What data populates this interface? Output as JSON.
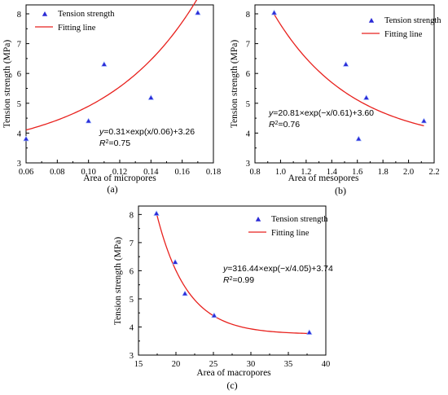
{
  "colors": {
    "marker": "#2b2bd6",
    "fit": "#e8211d",
    "axis": "#000000"
  },
  "chart_data": [
    {
      "id": "a",
      "type": "scatter",
      "panel_label": "(a)",
      "xlabel": "Area of micropores",
      "ylabel": "Tension strength (MPa)",
      "xlim": [
        0.06,
        0.18
      ],
      "ylim": [
        3,
        8.3
      ],
      "xticks": [
        0.06,
        0.08,
        0.1,
        0.12,
        0.14,
        0.16,
        0.18
      ],
      "xtick_labels": [
        "0.06",
        "0.08",
        "0.10",
        "0.12",
        "0.14",
        "0.16",
        "0.18"
      ],
      "yticks": [
        3,
        4,
        5,
        6,
        7,
        8
      ],
      "ytick_labels": [
        "3",
        "4",
        "5",
        "6",
        "7",
        "8"
      ],
      "legend": {
        "position": "top-left",
        "scatter_label": "Tension strength",
        "line_label": "Fitting line"
      },
      "points": {
        "x": [
          0.06,
          0.1,
          0.11,
          0.14,
          0.17
        ],
        "y": [
          3.8,
          4.4,
          6.3,
          5.18,
          8.03
        ]
      },
      "fit": {
        "model": "exp_pos",
        "A": 0.31,
        "t": 0.06,
        "C": 3.26,
        "x_range": [
          0.06,
          0.17
        ]
      },
      "equation": {
        "pre": "y",
        "body": "=0.31×exp(x/0.06)+3.26"
      },
      "r2": {
        "sup": "2",
        "value": "=0.75"
      }
    },
    {
      "id": "b",
      "type": "scatter",
      "panel_label": "(b)",
      "xlabel": "Area of mesopores",
      "ylabel": "Tension strength (MPa)",
      "xlim": [
        0.8,
        2.2
      ],
      "ylim": [
        3,
        8.3
      ],
      "xticks": [
        0.8,
        1.0,
        1.2,
        1.4,
        1.6,
        1.8,
        2.0,
        2.2
      ],
      "xtick_labels": [
        "0.8",
        "1.0",
        "1.2",
        "1.4",
        "1.6",
        "1.8",
        "2.0",
        "2.2"
      ],
      "yticks": [
        3,
        4,
        5,
        6,
        7,
        8
      ],
      "ytick_labels": [
        "3",
        "4",
        "5",
        "6",
        "7",
        "8"
      ],
      "legend": {
        "position": "top-right",
        "scatter_label": "Tension strength",
        "line_label": "Fitting line"
      },
      "points": {
        "x": [
          0.95,
          1.51,
          1.61,
          1.67,
          2.12
        ],
        "y": [
          8.03,
          6.3,
          3.8,
          5.18,
          4.4
        ]
      },
      "fit": {
        "model": "exp_neg",
        "A": 20.81,
        "t": 0.61,
        "C": 3.6,
        "x_range": [
          0.95,
          2.12
        ]
      },
      "equation": {
        "pre": "y",
        "body": "=20.81×exp(−x/0.61)+3.60"
      },
      "r2": {
        "sup": "2",
        "value": "=0.76"
      }
    },
    {
      "id": "c",
      "type": "scatter",
      "panel_label": "(c)",
      "xlabel": "Area of macropores",
      "ylabel": "Tension strength (MPa)",
      "xlim": [
        15,
        40
      ],
      "ylim": [
        3,
        8.3
      ],
      "xticks": [
        15,
        20,
        25,
        30,
        35,
        40
      ],
      "xtick_labels": [
        "15",
        "20",
        "25",
        "30",
        "35",
        "40"
      ],
      "yticks": [
        3,
        4,
        5,
        6,
        7,
        8
      ],
      "ytick_labels": [
        "3",
        "4",
        "5",
        "6",
        "7",
        "8"
      ],
      "legend": {
        "position": "top-right",
        "scatter_label": "Tension strength",
        "line_label": "Fitting line"
      },
      "points": {
        "x": [
          17.4,
          19.9,
          21.2,
          25.1,
          37.8
        ],
        "y": [
          8.03,
          6.3,
          5.18,
          4.4,
          3.8
        ]
      },
      "fit": {
        "model": "exp_neg",
        "A": 316.44,
        "t": 4.05,
        "C": 3.74,
        "x_range": [
          17.4,
          37.8
        ]
      },
      "equation": {
        "pre": "y",
        "body": "=316.44×exp(−x/4.05)+3.74"
      },
      "r2": {
        "sup": "2",
        "value": "=0.99"
      }
    }
  ]
}
